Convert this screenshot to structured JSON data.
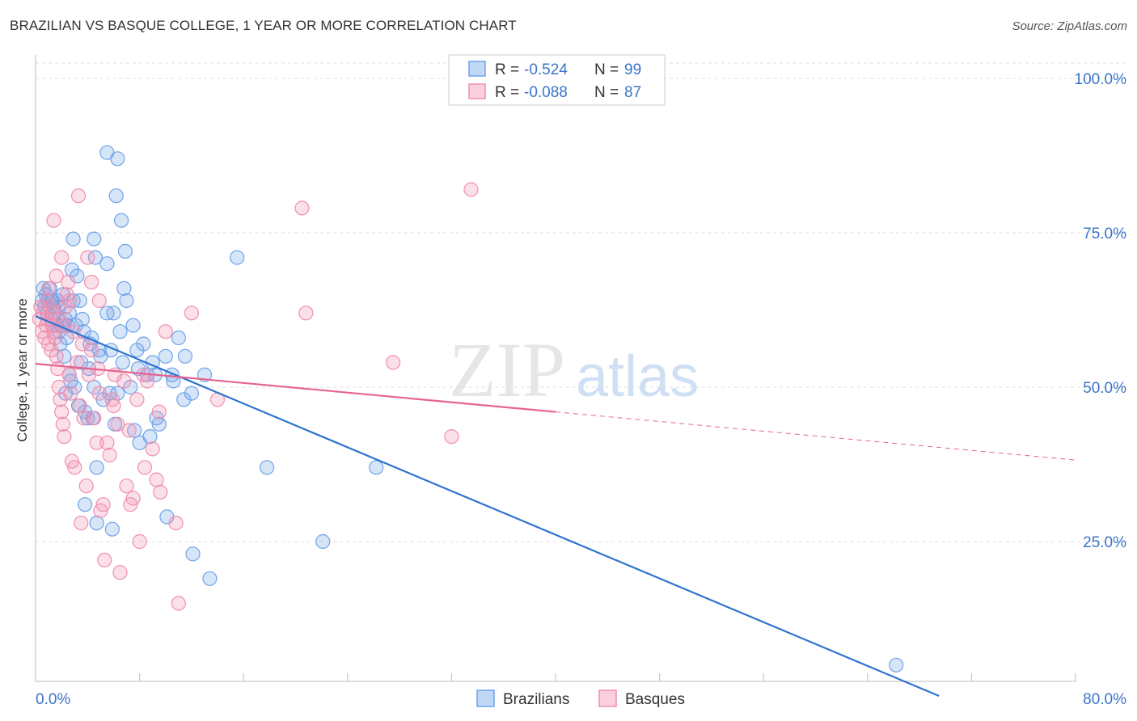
{
  "header": {
    "title": "BRAZILIAN VS BASQUE COLLEGE, 1 YEAR OR MORE CORRELATION CHART",
    "source": "Source: ZipAtlas.com"
  },
  "watermark": {
    "zip": "ZIP",
    "atlas": "atlas"
  },
  "legend": {
    "r_label": "R =",
    "n_label": "N =",
    "rows": [
      {
        "r": "-0.524",
        "n": "99",
        "color": "#6fa3e8"
      },
      {
        "r": "-0.088",
        "n": "87",
        "color": "#f08fb0"
      }
    ]
  },
  "bottom_legend": [
    "Brazilians",
    "Basques"
  ],
  "chart_data": {
    "type": "scatter",
    "title": "BRAZILIAN VS BASQUE COLLEGE, 1 YEAR OR MORE CORRELATION CHART",
    "xlabel": "",
    "ylabel": "College, 1 year or more",
    "xlim": [
      0,
      80
    ],
    "ylim": [
      0,
      105
    ],
    "x_tick_labels": [
      "0.0%",
      "80.0%"
    ],
    "y_ticks": [
      25,
      50,
      75,
      100
    ],
    "y_tick_labels": [
      "25.0%",
      "50.0%",
      "75.0%",
      "100.0%"
    ],
    "grid": "horizontal dashed",
    "series": [
      {
        "name": "Brazilians",
        "color": "#6fa3e8",
        "line_color": "#2f74d0",
        "r": -0.524,
        "n": 99,
        "trend": {
          "x": [
            0,
            69.5
          ],
          "y": [
            61.5,
            0
          ],
          "solid_to_x": 69.5
        },
        "points": [
          [
            0.5,
            64
          ],
          [
            0.6,
            66
          ],
          [
            0.7,
            63
          ],
          [
            0.8,
            65
          ],
          [
            0.9,
            62
          ],
          [
            1.0,
            64
          ],
          [
            1.1,
            66
          ],
          [
            1.2,
            61
          ],
          [
            1.3,
            64
          ],
          [
            1.4,
            63
          ],
          [
            1.5,
            62
          ],
          [
            1.6,
            60
          ],
          [
            1.7,
            64
          ],
          [
            1.8,
            59
          ],
          [
            1.9,
            57
          ],
          [
            2.0,
            60
          ],
          [
            2.1,
            65
          ],
          [
            2.2,
            55
          ],
          [
            2.3,
            61
          ],
          [
            2.4,
            58
          ],
          [
            2.5,
            60
          ],
          [
            2.6,
            52
          ],
          [
            2.7,
            51
          ],
          [
            2.8,
            69
          ],
          [
            2.9,
            64
          ],
          [
            3.0,
            50
          ],
          [
            3.2,
            68
          ],
          [
            3.4,
            64
          ],
          [
            3.5,
            54
          ],
          [
            3.6,
            61
          ],
          [
            3.8,
            46
          ],
          [
            4.0,
            45
          ],
          [
            4.1,
            53
          ],
          [
            4.3,
            58
          ],
          [
            4.5,
            50
          ],
          [
            4.7,
            37
          ],
          [
            5.0,
            55
          ],
          [
            5.2,
            48
          ],
          [
            5.5,
            62
          ],
          [
            5.7,
            49
          ],
          [
            6.0,
            62
          ],
          [
            6.3,
            49
          ],
          [
            6.5,
            59
          ],
          [
            6.8,
            66
          ],
          [
            7.0,
            64
          ],
          [
            7.3,
            50
          ],
          [
            7.5,
            60
          ],
          [
            7.8,
            56
          ],
          [
            8.0,
            41
          ],
          [
            8.3,
            57
          ],
          [
            8.6,
            52
          ],
          [
            9.0,
            54
          ],
          [
            9.3,
            45
          ],
          [
            9.5,
            44
          ],
          [
            10.0,
            55
          ],
          [
            10.5,
            52
          ],
          [
            11.0,
            58
          ],
          [
            11.5,
            55
          ],
          [
            12.0,
            49
          ],
          [
            13.0,
            52
          ],
          [
            5.5,
            88
          ],
          [
            6.3,
            87
          ],
          [
            6.2,
            81
          ],
          [
            6.6,
            77
          ],
          [
            2.9,
            74
          ],
          [
            4.5,
            74
          ],
          [
            4.6,
            71
          ],
          [
            5.5,
            70
          ],
          [
            6.9,
            72
          ],
          [
            15.5,
            71
          ],
          [
            3.8,
            31
          ],
          [
            4.7,
            28
          ],
          [
            5.9,
            27
          ],
          [
            10.1,
            29
          ],
          [
            12.1,
            23
          ],
          [
            13.4,
            19
          ],
          [
            17.8,
            37
          ],
          [
            22.1,
            25
          ],
          [
            26.2,
            37
          ],
          [
            66.2,
            5
          ],
          [
            1.2,
            64
          ],
          [
            1.8,
            63
          ],
          [
            2.6,
            62
          ],
          [
            3.1,
            60
          ],
          [
            3.7,
            59
          ],
          [
            4.2,
            57
          ],
          [
            4.9,
            56
          ],
          [
            5.8,
            56
          ],
          [
            6.7,
            54
          ],
          [
            7.9,
            53
          ],
          [
            9.2,
            52
          ],
          [
            10.6,
            51
          ],
          [
            2.3,
            49
          ],
          [
            3.3,
            47
          ],
          [
            4.4,
            45
          ],
          [
            6.1,
            44
          ],
          [
            7.6,
            43
          ],
          [
            8.8,
            42
          ],
          [
            11.4,
            48
          ]
        ]
      },
      {
        "name": "Basques",
        "color": "#f08fb0",
        "line_color": "#e7638e",
        "r": -0.088,
        "n": 87,
        "trend": {
          "x": [
            0,
            80
          ],
          "y": [
            53.8,
            38.2
          ],
          "solid_to_x": 40
        },
        "points": [
          [
            0.3,
            61
          ],
          [
            0.5,
            59
          ],
          [
            0.6,
            62
          ],
          [
            0.7,
            58
          ],
          [
            0.8,
            60
          ],
          [
            0.9,
            61
          ],
          [
            1.0,
            57
          ],
          [
            1.1,
            63
          ],
          [
            1.2,
            56
          ],
          [
            1.3,
            60
          ],
          [
            1.4,
            59
          ],
          [
            1.5,
            58
          ],
          [
            1.6,
            55
          ],
          [
            1.7,
            53
          ],
          [
            1.8,
            50
          ],
          [
            1.9,
            48
          ],
          [
            2.0,
            46
          ],
          [
            2.1,
            44
          ],
          [
            2.2,
            42
          ],
          [
            2.3,
            63
          ],
          [
            2.4,
            65
          ],
          [
            2.5,
            67
          ],
          [
            2.6,
            52
          ],
          [
            2.7,
            49
          ],
          [
            2.8,
            38
          ],
          [
            3.0,
            37
          ],
          [
            3.2,
            54
          ],
          [
            3.4,
            47
          ],
          [
            3.5,
            28
          ],
          [
            3.7,
            45
          ],
          [
            3.9,
            34
          ],
          [
            4.1,
            52
          ],
          [
            4.3,
            56
          ],
          [
            4.5,
            45
          ],
          [
            4.7,
            41
          ],
          [
            4.9,
            49
          ],
          [
            5.0,
            30
          ],
          [
            5.2,
            31
          ],
          [
            5.3,
            22
          ],
          [
            5.5,
            41
          ],
          [
            5.7,
            39
          ],
          [
            5.9,
            48
          ],
          [
            6.1,
            52
          ],
          [
            6.3,
            44
          ],
          [
            6.5,
            20
          ],
          [
            6.8,
            51
          ],
          [
            7.0,
            34
          ],
          [
            7.3,
            31
          ],
          [
            7.5,
            32
          ],
          [
            7.8,
            48
          ],
          [
            8.0,
            25
          ],
          [
            8.3,
            52
          ],
          [
            8.6,
            51
          ],
          [
            9.0,
            40
          ],
          [
            9.3,
            35
          ],
          [
            9.5,
            46
          ],
          [
            10.0,
            59
          ],
          [
            11.0,
            15
          ],
          [
            12.0,
            62
          ],
          [
            14.0,
            48
          ],
          [
            1.4,
            77
          ],
          [
            3.3,
            81
          ],
          [
            2.0,
            71
          ],
          [
            4.0,
            71
          ],
          [
            4.3,
            67
          ],
          [
            4.9,
            64
          ],
          [
            2.6,
            64
          ],
          [
            20.5,
            79
          ],
          [
            33.5,
            82
          ],
          [
            20.8,
            62
          ],
          [
            27.5,
            54
          ],
          [
            32.0,
            42
          ],
          [
            1.0,
            66
          ],
          [
            1.6,
            68
          ],
          [
            2.2,
            60
          ],
          [
            3.6,
            57
          ],
          [
            4.8,
            53
          ],
          [
            6.0,
            47
          ],
          [
            7.2,
            43
          ],
          [
            8.4,
            37
          ],
          [
            9.6,
            33
          ],
          [
            10.8,
            28
          ],
          [
            0.4,
            63
          ],
          [
            0.9,
            64
          ],
          [
            1.3,
            62
          ],
          [
            1.8,
            61
          ],
          [
            2.9,
            59
          ]
        ]
      }
    ]
  }
}
